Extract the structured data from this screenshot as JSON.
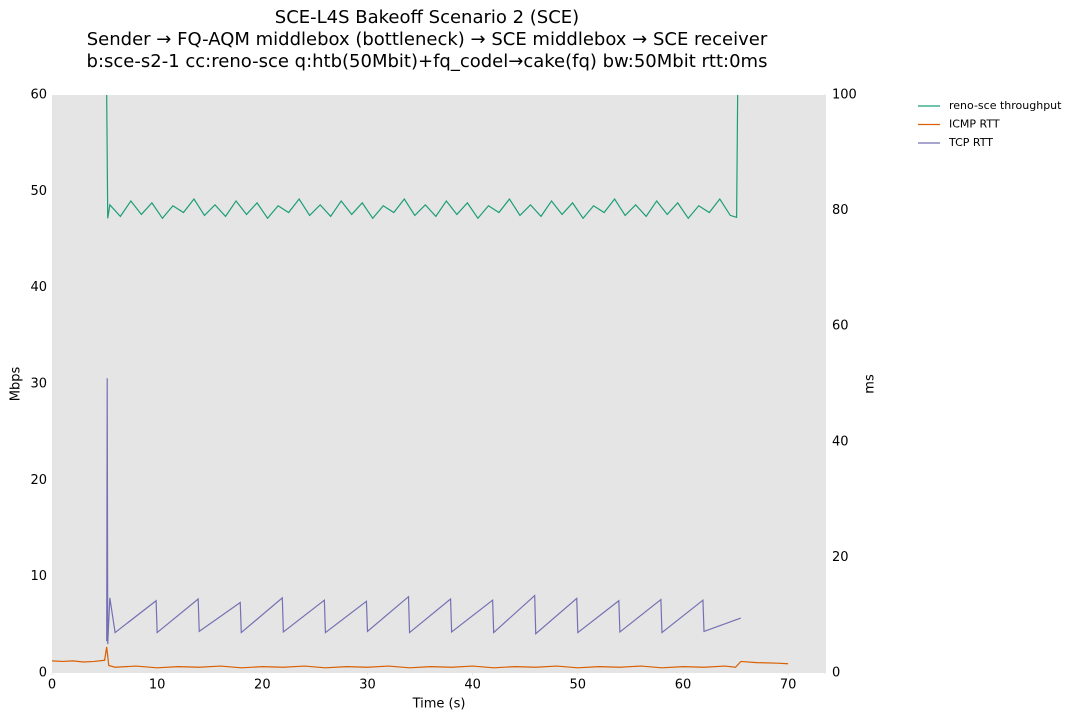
{
  "chart_data": {
    "type": "line",
    "title": "SCE-L4S Bakeoff Scenario 2 (SCE)",
    "subtitle": [
      "Sender → FQ-AQM middlebox (bottleneck) → SCE middlebox → SCE receiver",
      "b:sce-s2-1 cc:reno-sce q:htb(50Mbit)+fq_codel→cake(fq) bw:50Mbit rtt:0ms"
    ],
    "xlabel": "Time (s)",
    "ylabel": "Mbps",
    "y2label": "ms",
    "xlim": [
      0,
      73.6
    ],
    "xticks": [
      0,
      10,
      20,
      30,
      40,
      50,
      60,
      70
    ],
    "ylim": [
      0,
      60
    ],
    "yticks": [
      0,
      10,
      20,
      30,
      40,
      50,
      60
    ],
    "y2lim": [
      0,
      100
    ],
    "y2ticks": [
      0,
      20,
      40,
      60,
      80,
      100
    ],
    "grid": false,
    "legend": "outside-right",
    "series": [
      {
        "name": "reno-sce throughput",
        "color": "#1b9e77",
        "axis": "y",
        "x": [
          5.2,
          5.3,
          5.5,
          6.5,
          7.5,
          8.5,
          9.5,
          10.5,
          11.5,
          12.5,
          13.5,
          14.5,
          15.5,
          16.5,
          17.5,
          18.5,
          19.5,
          20.5,
          21.5,
          22.5,
          23.5,
          24.5,
          25.5,
          26.5,
          27.5,
          28.5,
          29.5,
          30.5,
          31.5,
          32.5,
          33.5,
          34.5,
          35.5,
          36.5,
          37.5,
          38.5,
          39.5,
          40.5,
          41.5,
          42.5,
          43.5,
          44.5,
          45.5,
          46.5,
          47.5,
          48.5,
          49.5,
          50.5,
          51.5,
          52.5,
          53.5,
          54.5,
          55.5,
          56.5,
          57.5,
          58.5,
          59.5,
          60.5,
          61.5,
          62.5,
          63.5,
          64.5,
          65.1,
          65.2
        ],
        "values": [
          60,
          47.2,
          48.6,
          47.4,
          49.0,
          47.6,
          48.8,
          47.2,
          48.5,
          47.8,
          49.2,
          47.5,
          48.6,
          47.4,
          49.0,
          47.6,
          48.8,
          47.2,
          48.5,
          47.8,
          49.2,
          47.5,
          48.6,
          47.4,
          49.0,
          47.6,
          48.8,
          47.2,
          48.5,
          47.8,
          49.2,
          47.5,
          48.6,
          47.4,
          49.0,
          47.6,
          48.8,
          47.2,
          48.5,
          47.8,
          49.2,
          47.5,
          48.6,
          47.4,
          49.0,
          47.6,
          48.8,
          47.2,
          48.5,
          47.8,
          49.2,
          47.5,
          48.6,
          47.4,
          49.0,
          47.6,
          48.8,
          47.2,
          48.5,
          47.8,
          49.2,
          47.5,
          47.3,
          60
        ]
      },
      {
        "name": "ICMP RTT",
        "color": "#d95f02",
        "axis": "y2",
        "x": [
          0,
          1,
          2,
          3,
          4,
          5,
          5.2,
          5.4,
          6,
          8,
          10,
          12,
          14,
          16,
          18,
          20,
          22,
          24,
          26,
          28,
          30,
          32,
          34,
          36,
          38,
          40,
          42,
          44,
          46,
          48,
          50,
          52,
          54,
          56,
          58,
          60,
          62,
          64,
          65,
          65.5,
          67,
          69,
          70
        ],
        "values": [
          2.1,
          2.0,
          2.1,
          1.9,
          2.0,
          2.2,
          4.5,
          1.3,
          1.0,
          1.2,
          0.9,
          1.1,
          1.0,
          1.2,
          0.9,
          1.1,
          1.0,
          1.2,
          0.9,
          1.1,
          1.0,
          1.2,
          0.9,
          1.1,
          1.0,
          1.2,
          0.9,
          1.1,
          1.0,
          1.2,
          0.9,
          1.1,
          1.0,
          1.2,
          0.9,
          1.1,
          1.0,
          1.2,
          1.0,
          2.0,
          1.8,
          1.7,
          1.6
        ]
      },
      {
        "name": "TCP RTT",
        "color": "#7570b3",
        "axis": "y2",
        "x": [
          5.2,
          5.25,
          5.3,
          5.5,
          6,
          9.9,
          10,
          13.9,
          14,
          17.9,
          18,
          21.9,
          22,
          25.9,
          26,
          29.9,
          30,
          33.9,
          34,
          37.9,
          38,
          41.9,
          42,
          45.9,
          46,
          49.9,
          50,
          53.9,
          54,
          57.9,
          58,
          61.9,
          62,
          65.5
        ],
        "values": [
          5.5,
          51,
          5,
          13,
          7,
          12.5,
          7,
          12.8,
          7.2,
          12.2,
          7,
          13,
          7.1,
          12.6,
          7,
          12.4,
          7.2,
          13.2,
          7,
          12.8,
          7.1,
          12.6,
          7,
          13.4,
          6.8,
          12.9,
          7,
          12.5,
          7.1,
          12.7,
          7,
          12.6,
          7.2,
          9.5
        ]
      }
    ]
  }
}
